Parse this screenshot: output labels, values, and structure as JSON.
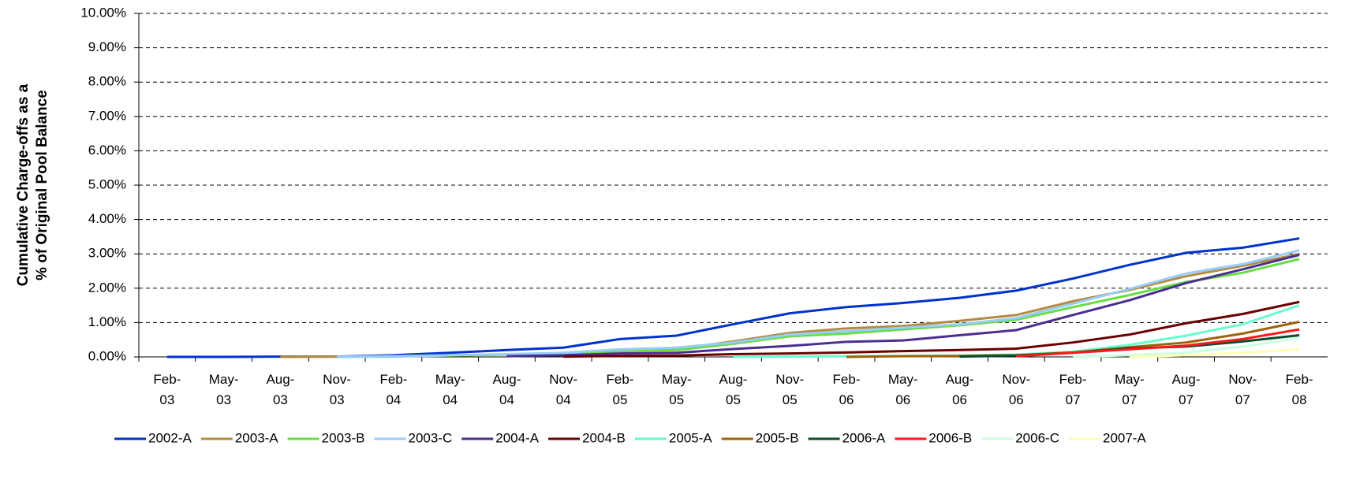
{
  "chart_data": {
    "type": "line",
    "ylabel": [
      "Cumulative Charge-offs as a",
      "% of Original Pool Balance"
    ],
    "categories": [
      "Feb-03",
      "May-03",
      "Aug-03",
      "Nov-03",
      "Feb-04",
      "May-04",
      "Aug-04",
      "Nov-04",
      "Feb-05",
      "May-05",
      "Aug-05",
      "Nov-05",
      "Feb-06",
      "May-06",
      "Aug-06",
      "Nov-06",
      "Feb-07",
      "May-07",
      "Aug-07",
      "Nov-07",
      "Feb-08"
    ],
    "ylim": [
      0,
      10
    ],
    "yticks": [
      {
        "value": 0,
        "label": "0.00%"
      },
      {
        "value": 1,
        "label": "1.00%"
      },
      {
        "value": 2,
        "label": "2.00%"
      },
      {
        "value": 3,
        "label": "3.00%"
      },
      {
        "value": 4,
        "label": "4.00%"
      },
      {
        "value": 5,
        "label": "5.00%"
      },
      {
        "value": 6,
        "label": "6.00%"
      },
      {
        "value": 7,
        "label": "7.00%"
      },
      {
        "value": 8,
        "label": "8.00%"
      },
      {
        "value": 9,
        "label": "9.00%"
      },
      {
        "value": 10,
        "label": "10.00%"
      }
    ],
    "grid": true,
    "legend": "bottom",
    "series": [
      {
        "name": "2002-A",
        "color": "#0033cc",
        "values": [
          0,
          0,
          0.01,
          0.01,
          0.05,
          0.12,
          0.2,
          0.27,
          0.52,
          0.62,
          0.95,
          1.27,
          1.45,
          1.57,
          1.72,
          1.93,
          2.28,
          2.68,
          3.03,
          3.18,
          3.45
        ]
      },
      {
        "name": "2003-A",
        "color": "#b38b3f",
        "values": [
          null,
          null,
          0,
          0.01,
          0.02,
          0.05,
          0.07,
          0.1,
          0.2,
          0.23,
          0.45,
          0.7,
          0.83,
          0.9,
          1.05,
          1.22,
          1.62,
          1.95,
          2.35,
          2.65,
          3.0
        ]
      },
      {
        "name": "2003-B",
        "color": "#66dd44",
        "values": [
          null,
          null,
          null,
          0,
          0.01,
          0.04,
          0.07,
          0.09,
          0.17,
          0.2,
          0.38,
          0.6,
          0.68,
          0.8,
          0.92,
          1.08,
          1.45,
          1.8,
          2.18,
          2.45,
          2.85
        ]
      },
      {
        "name": "2003-C",
        "color": "#99ccff",
        "values": [
          null,
          null,
          null,
          0,
          0.02,
          0.05,
          0.08,
          0.12,
          0.22,
          0.27,
          0.42,
          0.65,
          0.75,
          0.85,
          0.95,
          1.13,
          1.55,
          1.98,
          2.43,
          2.7,
          3.1
        ]
      },
      {
        "name": "2004-A",
        "color": "#4a2f8f",
        "values": [
          null,
          null,
          null,
          null,
          null,
          null,
          0.02,
          0.05,
          0.1,
          0.12,
          0.23,
          0.32,
          0.44,
          0.48,
          0.63,
          0.78,
          1.22,
          1.65,
          2.15,
          2.55,
          2.97
        ]
      },
      {
        "name": "2004-B",
        "color": "#6b0000",
        "values": [
          null,
          null,
          null,
          null,
          null,
          null,
          null,
          0.01,
          0.03,
          0.04,
          0.08,
          0.1,
          0.13,
          0.17,
          0.2,
          0.24,
          0.42,
          0.65,
          0.98,
          1.25,
          1.6
        ]
      },
      {
        "name": "2005-A",
        "color": "#66ffcc",
        "values": [
          null,
          null,
          null,
          null,
          null,
          null,
          null,
          null,
          null,
          null,
          0,
          0.01,
          0.02,
          0.03,
          0.04,
          0.07,
          0.15,
          0.35,
          0.62,
          0.95,
          1.5
        ]
      },
      {
        "name": "2005-B",
        "color": "#a0620a",
        "values": [
          null,
          null,
          null,
          null,
          null,
          null,
          null,
          null,
          null,
          null,
          null,
          null,
          0,
          0.02,
          0.03,
          0.05,
          0.13,
          0.28,
          0.42,
          0.68,
          1.02
        ]
      },
      {
        "name": "2006-A",
        "color": "#0b4d2e",
        "values": [
          null,
          null,
          null,
          null,
          null,
          null,
          null,
          null,
          null,
          null,
          null,
          null,
          null,
          null,
          0.01,
          0.04,
          0.12,
          0.25,
          0.3,
          0.45,
          0.63
        ]
      },
      {
        "name": "2006-B",
        "color": "#ff1a1a",
        "values": [
          null,
          null,
          null,
          null,
          null,
          null,
          null,
          null,
          null,
          null,
          null,
          null,
          null,
          null,
          null,
          0.02,
          0.12,
          0.22,
          0.33,
          0.52,
          0.8
        ]
      },
      {
        "name": "2006-C",
        "color": "#ccffe0",
        "values": [
          null,
          null,
          null,
          null,
          null,
          null,
          null,
          null,
          null,
          null,
          null,
          null,
          null,
          null,
          null,
          null,
          0,
          0.05,
          0.12,
          0.3,
          0.55
        ]
      },
      {
        "name": "2007-A",
        "color": "#ffffb3",
        "values": [
          null,
          null,
          null,
          null,
          null,
          null,
          null,
          null,
          null,
          null,
          null,
          null,
          null,
          null,
          null,
          null,
          null,
          0,
          0.05,
          0.12,
          0.22
        ]
      }
    ]
  }
}
